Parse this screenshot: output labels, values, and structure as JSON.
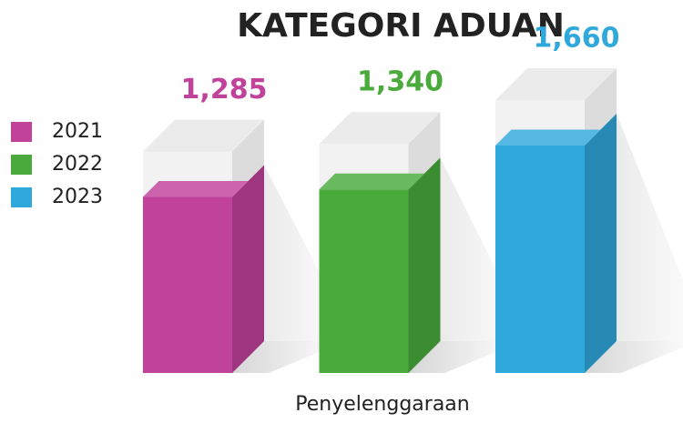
{
  "chart_data": {
    "type": "bar3d",
    "title": "KATEGORI ADUAN",
    "categories": [
      "Penyelenggaraan"
    ],
    "series": [
      {
        "name": "2021",
        "color": "#c0429a",
        "values": [
          1285
        ],
        "value_labels": [
          "1,285"
        ]
      },
      {
        "name": "2022",
        "color": "#4aab3c",
        "values": [
          1340
        ],
        "value_labels": [
          "1,340"
        ]
      },
      {
        "name": "2023",
        "color": "#2fa9dc",
        "values": [
          1660
        ],
        "value_labels": [
          "1,660"
        ]
      }
    ]
  }
}
